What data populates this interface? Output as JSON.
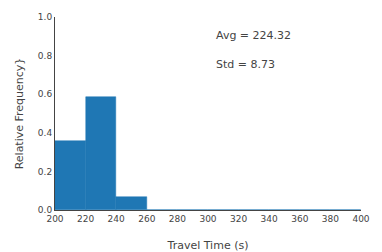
{
  "chart_data": {
    "type": "histogram",
    "bins": [
      200,
      220,
      240,
      260,
      280,
      300,
      320,
      340,
      360,
      380,
      400
    ],
    "values": [
      0.36,
      0.585,
      0.065,
      0.0,
      0.0,
      0.0,
      0.0,
      0.0,
      0.0,
      0.0
    ],
    "color": "#1f77b4",
    "xlabel": "Travel Time (s)",
    "ylabel": "Relative Frequency}",
    "annotation": "Avg = 224.32\n\nStd = 8.73",
    "xlim": [
      200,
      400
    ],
    "ylim": [
      0.0,
      1.0
    ],
    "xticks": [
      200,
      220,
      240,
      260,
      280,
      300,
      320,
      340,
      360,
      380,
      400
    ],
    "yticks": [
      {
        "value": 0.0,
        "label": "0.0"
      },
      0.2,
      0.4,
      0.6,
      0.8,
      {
        "value": 1.0,
        "label": "1.0"
      }
    ],
    "grid": false
  }
}
